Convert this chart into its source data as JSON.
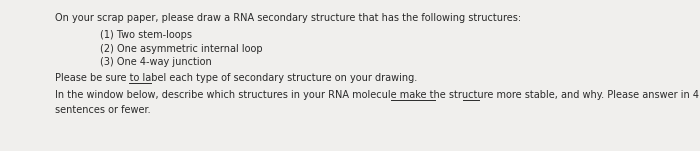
{
  "bg_color": "#f0efed",
  "text_color": "#2a2a2a",
  "title_line": "On your scrap paper, please draw a RNA secondary structure that has the following structures:",
  "items": [
    "(1) Two stem-loops",
    "(2) One asymmetric internal loop",
    "(3) One 4-way junction"
  ],
  "label_line": "Please be sure to label each type of secondary structure on your drawing.",
  "paragraph_line1": "In the window below, describe which structures in your RNA molecule make the structure more stable, and why. Please answer in 4",
  "paragraph_line2": "sentences or fewer.",
  "font_size": 7.0,
  "figsize": [
    7.0,
    1.51
  ],
  "dpi": 100
}
